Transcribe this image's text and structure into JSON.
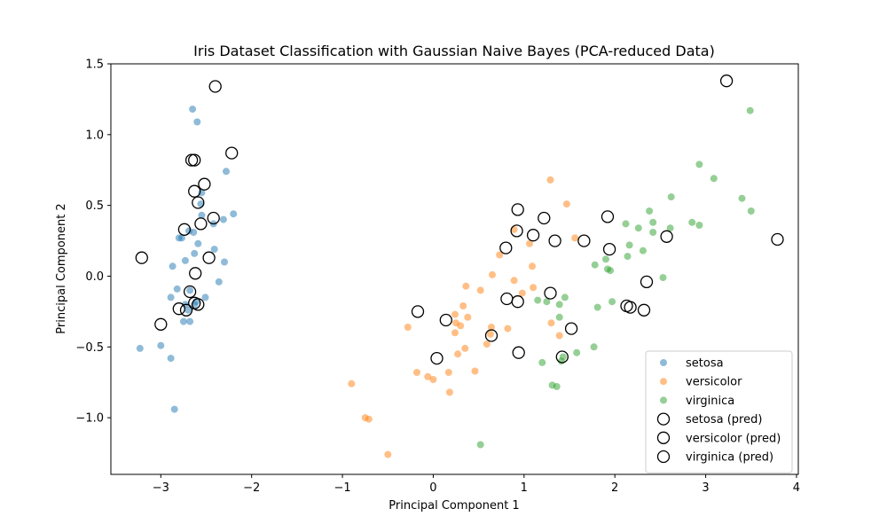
{
  "chart_data": {
    "type": "scatter",
    "title": "Iris Dataset Classification with Gaussian Naive Bayes (PCA-reduced Data)",
    "xlabel": "Principal Component 1",
    "ylabel": "Principal Component 2",
    "xlim": [
      -3.55,
      4.02
    ],
    "ylim": [
      -1.4,
      1.5
    ],
    "xticks": [
      -3,
      -2,
      -1,
      0,
      1,
      2,
      3,
      4
    ],
    "xtick_labels": [
      "−3",
      "−2",
      "−1",
      "0",
      "1",
      "2",
      "3",
      "4"
    ],
    "yticks": [
      -1.0,
      -0.5,
      0.0,
      0.5,
      1.0,
      1.5
    ],
    "ytick_labels": [
      "−1.0",
      "−0.5",
      "0.0",
      "0.5",
      "1.0",
      "1.5"
    ],
    "grid": false,
    "legend_position": "bottom-right",
    "series": [
      {
        "name": "setosa",
        "marker": "filled-circle",
        "color": "#1f77b4",
        "points": [
          [
            -2.65,
            1.18
          ],
          [
            -2.6,
            1.09
          ],
          [
            -2.28,
            0.74
          ],
          [
            -2.55,
            0.59
          ],
          [
            -2.56,
            0.51
          ],
          [
            -2.2,
            0.44
          ],
          [
            -2.55,
            0.43
          ],
          [
            -2.69,
            0.32
          ],
          [
            -2.64,
            0.31
          ],
          [
            -2.31,
            0.4
          ],
          [
            -2.42,
            0.37
          ],
          [
            -2.8,
            0.27
          ],
          [
            -2.77,
            0.27
          ],
          [
            -2.59,
            0.23
          ],
          [
            -2.41,
            0.19
          ],
          [
            -2.63,
            0.16
          ],
          [
            -2.73,
            0.11
          ],
          [
            -2.3,
            0.1
          ],
          [
            -2.87,
            0.07
          ],
          [
            -2.36,
            -0.04
          ],
          [
            -2.82,
            -0.09
          ],
          [
            -2.68,
            -0.1
          ],
          [
            -2.89,
            -0.15
          ],
          [
            -2.51,
            -0.15
          ],
          [
            -2.73,
            -0.2
          ],
          [
            -2.63,
            -0.2
          ],
          [
            -2.7,
            -0.24
          ],
          [
            -2.75,
            -0.32
          ],
          [
            -3.0,
            -0.49
          ],
          [
            -3.23,
            -0.51
          ],
          [
            -2.89,
            -0.58
          ],
          [
            -2.85,
            -0.94
          ],
          [
            -2.61,
            -0.18
          ],
          [
            -2.68,
            -0.32
          ]
        ]
      },
      {
        "name": "versicolor",
        "marker": "filled-circle",
        "color": "#ff7f0e",
        "points": [
          [
            1.29,
            0.68
          ],
          [
            1.47,
            0.51
          ],
          [
            0.89,
            0.33
          ],
          [
            1.56,
            0.27
          ],
          [
            1.06,
            0.23
          ],
          [
            0.73,
            0.15
          ],
          [
            1.09,
            0.07
          ],
          [
            0.65,
            0.01
          ],
          [
            0.89,
            -0.03
          ],
          [
            0.36,
            -0.07
          ],
          [
            0.52,
            -0.1
          ],
          [
            0.98,
            -0.12
          ],
          [
            1.1,
            -0.08
          ],
          [
            0.33,
            -0.21
          ],
          [
            0.24,
            -0.27
          ],
          [
            0.38,
            -0.29
          ],
          [
            0.25,
            -0.33
          ],
          [
            0.3,
            -0.35
          ],
          [
            1.3,
            -0.33
          ],
          [
            0.24,
            -0.4
          ],
          [
            0.64,
            -0.36
          ],
          [
            0.82,
            -0.37
          ],
          [
            1.39,
            -0.42
          ],
          [
            -0.28,
            -0.36
          ],
          [
            0.59,
            -0.48
          ],
          [
            0.35,
            -0.51
          ],
          [
            0.27,
            -0.55
          ],
          [
            0.63,
            -0.41
          ],
          [
            0.46,
            -0.67
          ],
          [
            -0.18,
            -0.68
          ],
          [
            0.17,
            -0.68
          ],
          [
            -0.06,
            -0.71
          ],
          [
            0.0,
            -0.73
          ],
          [
            0.18,
            -0.82
          ],
          [
            -0.9,
            -0.76
          ],
          [
            -0.75,
            -1.0
          ],
          [
            -0.71,
            -1.01
          ],
          [
            -0.5,
            -1.26
          ]
        ]
      },
      {
        "name": "virginica",
        "marker": "filled-circle",
        "color": "#2ca02c",
        "points": [
          [
            3.49,
            1.17
          ],
          [
            2.93,
            0.79
          ],
          [
            3.09,
            0.69
          ],
          [
            2.62,
            0.56
          ],
          [
            3.4,
            0.55
          ],
          [
            3.5,
            0.46
          ],
          [
            2.38,
            0.46
          ],
          [
            2.42,
            0.38
          ],
          [
            2.85,
            0.38
          ],
          [
            2.93,
            0.36
          ],
          [
            2.12,
            0.37
          ],
          [
            2.26,
            0.34
          ],
          [
            2.61,
            0.34
          ],
          [
            2.42,
            0.31
          ],
          [
            2.16,
            0.22
          ],
          [
            2.31,
            0.18
          ],
          [
            2.14,
            0.14
          ],
          [
            1.9,
            0.12
          ],
          [
            1.78,
            0.08
          ],
          [
            1.92,
            0.05
          ],
          [
            1.95,
            0.04
          ],
          [
            2.53,
            -0.01
          ],
          [
            1.15,
            -0.17
          ],
          [
            1.25,
            -0.18
          ],
          [
            1.39,
            -0.2
          ],
          [
            1.45,
            -0.15
          ],
          [
            1.97,
            -0.18
          ],
          [
            1.81,
            -0.22
          ],
          [
            1.39,
            -0.29
          ],
          [
            1.77,
            -0.5
          ],
          [
            1.58,
            -0.54
          ],
          [
            1.43,
            -0.57
          ],
          [
            1.41,
            -0.6
          ],
          [
            1.2,
            -0.61
          ],
          [
            1.31,
            -0.77
          ],
          [
            1.36,
            -0.78
          ],
          [
            0.52,
            -1.19
          ]
        ]
      },
      {
        "name": "setosa (pred)",
        "marker": "hollow-circle",
        "color": "#000000",
        "points": [
          [
            -2.4,
            1.34
          ],
          [
            -2.22,
            0.87
          ],
          [
            -2.66,
            0.82
          ],
          [
            -2.63,
            0.82
          ],
          [
            -2.52,
            0.65
          ],
          [
            -2.63,
            0.6
          ],
          [
            -2.59,
            0.52
          ],
          [
            -2.42,
            0.41
          ],
          [
            -2.56,
            0.37
          ],
          [
            -2.74,
            0.33
          ],
          [
            -2.47,
            0.13
          ],
          [
            -3.21,
            0.13
          ],
          [
            -2.62,
            0.02
          ],
          [
            -2.68,
            -0.11
          ],
          [
            -2.63,
            -0.19
          ],
          [
            -2.59,
            -0.2
          ],
          [
            -2.8,
            -0.23
          ],
          [
            -2.72,
            -0.24
          ],
          [
            -3.0,
            -0.34
          ]
        ]
      },
      {
        "name": "versicolor (pred)",
        "marker": "hollow-circle",
        "color": "#000000",
        "points": [
          [
            0.93,
            0.47
          ],
          [
            1.22,
            0.41
          ],
          [
            0.92,
            0.32
          ],
          [
            1.1,
            0.29
          ],
          [
            1.34,
            0.25
          ],
          [
            0.8,
            0.2
          ],
          [
            1.29,
            -0.12
          ],
          [
            0.81,
            -0.16
          ],
          [
            0.93,
            -0.18
          ],
          [
            -0.17,
            -0.25
          ],
          [
            0.14,
            -0.31
          ],
          [
            1.52,
            -0.37
          ],
          [
            0.64,
            -0.42
          ],
          [
            0.94,
            -0.54
          ],
          [
            0.04,
            -0.58
          ],
          [
            1.42,
            -0.57
          ]
        ]
      },
      {
        "name": "virginica (pred)",
        "marker": "hollow-circle",
        "color": "#000000",
        "points": [
          [
            3.23,
            1.38
          ],
          [
            1.92,
            0.42
          ],
          [
            1.66,
            0.25
          ],
          [
            1.94,
            0.19
          ],
          [
            2.57,
            0.28
          ],
          [
            3.79,
            0.26
          ],
          [
            2.35,
            -0.04
          ],
          [
            2.13,
            -0.21
          ],
          [
            2.17,
            -0.22
          ],
          [
            2.32,
            -0.24
          ]
        ]
      }
    ]
  }
}
